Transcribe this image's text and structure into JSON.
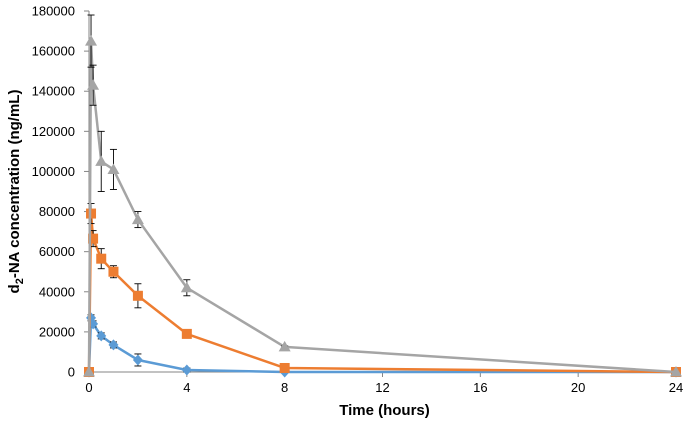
{
  "chart_data": {
    "type": "line",
    "xlabel": "Time (hours)",
    "ylabel_main": "d",
    "ylabel_sub": "2",
    "ylabel_rest": "-NA concentration (ng/mL)",
    "xlim": [
      0,
      24
    ],
    "ylim": [
      0,
      180000
    ],
    "x_ticks": [
      "0",
      "4",
      "8",
      "12",
      "16",
      "20",
      "24"
    ],
    "y_ticks": [
      "0",
      "20000",
      "40000",
      "60000",
      "80000",
      "100000",
      "120000",
      "140000",
      "160000",
      "180000"
    ],
    "grid": false,
    "series": [
      {
        "marker": "diamond",
        "color": "#5b9bd5",
        "points": [
          {
            "x": 0,
            "y": 0
          },
          {
            "x": 0.083,
            "y": 27000,
            "err": 1500
          },
          {
            "x": 0.167,
            "y": 24000,
            "err": 1500
          },
          {
            "x": 0.5,
            "y": 18000,
            "err": 1500
          },
          {
            "x": 1,
            "y": 13500,
            "err": 1500
          },
          {
            "x": 2,
            "y": 6000,
            "err": 3000
          },
          {
            "x": 4,
            "y": 1000,
            "err": 1000
          },
          {
            "x": 8,
            "y": 0,
            "err": 0
          },
          {
            "x": 24,
            "y": 0,
            "err": 0
          }
        ]
      },
      {
        "marker": "square",
        "color": "#ed7d31",
        "points": [
          {
            "x": 0,
            "y": 0
          },
          {
            "x": 0.083,
            "y": 79000,
            "err": 5000
          },
          {
            "x": 0.167,
            "y": 66500,
            "err": 4000
          },
          {
            "x": 0.5,
            "y": 56500,
            "err": 5000
          },
          {
            "x": 1,
            "y": 50000,
            "err": 3000
          },
          {
            "x": 2,
            "y": 38000,
            "err": 6000
          },
          {
            "x": 4,
            "y": 19000,
            "err": 1000
          },
          {
            "x": 8,
            "y": 2000,
            "err": 1000
          },
          {
            "x": 24,
            "y": 0,
            "err": 0
          }
        ]
      },
      {
        "marker": "triangle",
        "color": "#a5a5a5",
        "points": [
          {
            "x": 0,
            "y": 0
          },
          {
            "x": 0.083,
            "y": 165000,
            "err": 13000
          },
          {
            "x": 0.167,
            "y": 143000,
            "err": 10000
          },
          {
            "x": 0.5,
            "y": 105000,
            "err": 15000
          },
          {
            "x": 1,
            "y": 101000,
            "err": 10000
          },
          {
            "x": 2,
            "y": 76000,
            "err": 4000
          },
          {
            "x": 4,
            "y": 42000,
            "err": 4000
          },
          {
            "x": 8,
            "y": 12500,
            "err": 500
          },
          {
            "x": 24,
            "y": 0,
            "err": 0
          }
        ]
      }
    ]
  }
}
